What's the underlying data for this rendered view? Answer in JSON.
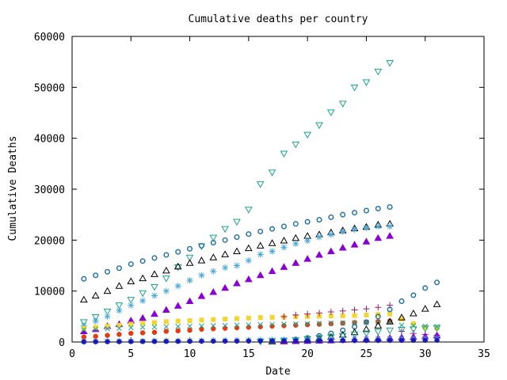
{
  "chart_data": {
    "type": "scatter",
    "title": "Cumulative deaths per country",
    "xlabel": "Date",
    "ylabel": "Cumulative Deaths",
    "xlim": [
      0,
      35
    ],
    "ylim": [
      0,
      60000
    ],
    "xticks": [
      0,
      5,
      10,
      15,
      20,
      25,
      30,
      35
    ],
    "yticks": [
      0,
      10000,
      20000,
      30000,
      40000,
      50000,
      60000
    ],
    "grid": false,
    "legend": "none",
    "series": [
      {
        "marker": "triangle-down-open",
        "color": "#1aa58a",
        "x": [
          1,
          2,
          3,
          4,
          5,
          6,
          7,
          8,
          9,
          10,
          11,
          12,
          13,
          14,
          15,
          16,
          17,
          18,
          19,
          20,
          21,
          22,
          23,
          24,
          25,
          26,
          27
        ],
        "y": [
          3900,
          4900,
          6000,
          7200,
          8300,
          9600,
          10800,
          12500,
          14700,
          16600,
          18800,
          20500,
          22200,
          23600,
          26000,
          31000,
          33300,
          37000,
          38800,
          40700,
          42600,
          45100,
          46800,
          50000,
          51000,
          53100,
          54800
        ]
      },
      {
        "marker": "circle-open",
        "color": "#1e6fa5",
        "x": [
          1,
          2,
          3,
          4,
          5,
          6,
          7,
          8,
          9,
          10,
          11,
          12,
          13,
          14,
          15,
          16,
          17,
          18,
          19,
          20,
          21,
          22,
          23,
          24,
          25,
          26,
          27
        ],
        "y": [
          12400,
          13100,
          13800,
          14500,
          15300,
          15900,
          16500,
          17100,
          17700,
          18300,
          18900,
          19500,
          20000,
          20600,
          21200,
          21700,
          22200,
          22700,
          23200,
          23600,
          24000,
          24500,
          25000,
          25400,
          25800,
          26200,
          26500
        ]
      },
      {
        "marker": "triangle-up-open",
        "color": "#000000",
        "x": [
          1,
          2,
          3,
          4,
          5,
          6,
          7,
          8,
          9,
          10,
          11,
          12,
          13,
          14,
          15,
          16,
          17,
          18,
          19,
          20,
          21,
          22,
          23,
          24,
          25,
          26,
          27
        ],
        "y": [
          8300,
          9100,
          10000,
          11000,
          11900,
          12500,
          13300,
          14000,
          14800,
          15500,
          16000,
          16600,
          17200,
          17800,
          18400,
          18900,
          19400,
          19900,
          20400,
          20800,
          21100,
          21500,
          21900,
          22300,
          22600,
          23000,
          23200
        ]
      },
      {
        "marker": "asterisk",
        "color": "#4aa8d8",
        "x": [
          1,
          2,
          3,
          4,
          5,
          6,
          7,
          8,
          9,
          10,
          11,
          12,
          13,
          14,
          15,
          16,
          17,
          18,
          19,
          20,
          21,
          22,
          23,
          24,
          25,
          26,
          27
        ],
        "y": [
          3200,
          4100,
          5000,
          6200,
          7200,
          8100,
          9100,
          10000,
          11000,
          12100,
          13100,
          13900,
          14600,
          15000,
          16000,
          17200,
          17800,
          18600,
          19300,
          19900,
          20600,
          21100,
          21700,
          22100,
          22400,
          22700,
          22700
        ]
      },
      {
        "marker": "triangle-up-filled",
        "color": "#8a00d4",
        "x": [
          1,
          2,
          3,
          4,
          5,
          6,
          7,
          8,
          9,
          10,
          11,
          12,
          13,
          14,
          15,
          16,
          17,
          18,
          19,
          20,
          21,
          22,
          23,
          24,
          25,
          26,
          27
        ],
        "y": [
          2100,
          2500,
          3100,
          3500,
          4200,
          4700,
          5500,
          6300,
          7100,
          8000,
          9000,
          9800,
          10600,
          11500,
          12300,
          13100,
          13900,
          14700,
          15500,
          16300,
          17100,
          17800,
          18500,
          19100,
          19700,
          20400,
          20800
        ]
      },
      {
        "marker": "square-filled",
        "color": "#f2d630",
        "x": [
          1,
          2,
          3,
          4,
          5,
          6,
          7,
          8,
          9,
          10,
          11,
          12,
          13,
          14,
          15,
          16,
          17,
          18,
          19,
          20,
          21,
          22,
          23,
          24,
          25,
          26,
          27,
          28,
          29,
          30,
          31
        ],
        "y": [
          2700,
          2900,
          3100,
          3300,
          3500,
          3700,
          3800,
          4000,
          4100,
          4200,
          4300,
          4400,
          4500,
          4600,
          4700,
          4800,
          4850,
          4900,
          4950,
          5000,
          5050,
          5100,
          5150,
          5200,
          5300,
          5400,
          5500,
          4500,
          3600,
          2900,
          2700
        ]
      },
      {
        "marker": "circle-filled",
        "color": "#e83a10",
        "x": [
          1,
          2,
          3,
          4,
          5,
          6,
          7,
          8,
          9,
          10,
          11,
          12,
          13,
          14,
          15,
          16,
          17,
          18,
          19,
          20,
          21,
          22,
          23,
          24,
          25,
          26,
          27
        ],
        "y": [
          1000,
          1100,
          1300,
          1500,
          1700,
          1800,
          1900,
          2100,
          2200,
          2300,
          2500,
          2600,
          2700,
          2800,
          2900,
          3000,
          3100,
          3200,
          3300,
          3400,
          3500,
          3600,
          3700,
          3800,
          3900,
          4000,
          4100
        ]
      },
      {
        "marker": "x",
        "color": "#1aa58a",
        "x": [
          1,
          2,
          3,
          4,
          5,
          6,
          7,
          8,
          9,
          10,
          11,
          12,
          13,
          14,
          15,
          16,
          17,
          18,
          19,
          20,
          21,
          22,
          23,
          24,
          25,
          26,
          27,
          28,
          29,
          30,
          31
        ],
        "y": [
          2400,
          2500,
          2600,
          2700,
          2800,
          2900,
          2950,
          3000,
          3050,
          3100,
          3150,
          3200,
          3250,
          3300,
          3350,
          3400,
          3450,
          3500,
          3550,
          3600,
          3650,
          3700,
          3750,
          3800,
          3850,
          3900,
          3950,
          3300,
          3200,
          3100,
          3000
        ]
      },
      {
        "marker": "plus",
        "color": "#9a1a6e",
        "x": [
          18,
          19,
          20,
          21,
          22,
          23,
          24,
          25,
          26,
          27,
          28,
          29,
          30,
          31
        ],
        "y": [
          5000,
          5300,
          5500,
          5700,
          5900,
          6100,
          6300,
          6500,
          6800,
          7200,
          2100,
          1700,
          1500,
          1300
        ]
      },
      {
        "marker": "circle-open",
        "color": "#1e6fa5",
        "x": [
          17,
          18,
          19,
          20,
          21,
          22,
          23,
          24,
          25,
          26,
          27,
          28,
          29,
          30,
          31
        ],
        "y": [
          200,
          300,
          500,
          800,
          1200,
          1700,
          2300,
          3000,
          3900,
          5000,
          6400,
          8000,
          9200,
          10600,
          11700
        ]
      },
      {
        "marker": "triangle-up-open",
        "color": "#000000",
        "x": [
          17,
          18,
          19,
          20,
          21,
          22,
          23,
          24,
          25,
          26,
          27,
          28,
          29,
          30,
          31
        ],
        "y": [
          100,
          200,
          300,
          500,
          700,
          1000,
          1400,
          1900,
          2500,
          3200,
          4000,
          4800,
          5600,
          6500,
          7400
        ]
      },
      {
        "marker": "triangle-down-open",
        "color": "#1aa58a",
        "x": [
          16,
          17,
          18,
          19,
          20,
          21,
          22,
          23,
          24,
          25,
          26,
          27,
          28,
          29,
          30,
          31
        ],
        "y": [
          100,
          200,
          300,
          400,
          600,
          800,
          1000,
          1200,
          1500,
          1700,
          2000,
          2300,
          2400,
          2500,
          2700,
          2800
        ]
      },
      {
        "marker": "triangle-up-filled",
        "color": "#8a00d4",
        "x": [
          18,
          19,
          20,
          21,
          22,
          23,
          24,
          25,
          26,
          27,
          28,
          29,
          30,
          31
        ],
        "y": [
          100,
          150,
          200,
          250,
          300,
          400,
          500,
          600,
          700,
          800,
          900,
          1000,
          1100,
          1300
        ]
      },
      {
        "marker": "asterisk",
        "color": "#4aa8d8",
        "x": [
          1,
          2,
          3,
          4,
          5,
          6,
          7,
          8,
          9,
          10,
          11,
          12,
          13,
          14,
          15,
          16,
          17,
          18,
          19,
          20,
          21,
          22,
          23,
          24,
          25,
          26,
          27,
          28,
          29,
          30,
          31
        ],
        "y": [
          100,
          120,
          140,
          160,
          180,
          200,
          220,
          240,
          260,
          280,
          300,
          320,
          340,
          360,
          380,
          400,
          420,
          440,
          460,
          480,
          500,
          520,
          540,
          560,
          580,
          600,
          620,
          640,
          660,
          680,
          700
        ]
      },
      {
        "marker": "circle-filled",
        "color": "#1a1ab8",
        "x": [
          1,
          2,
          3,
          4,
          5,
          6,
          7,
          8,
          9,
          10,
          11,
          12,
          13,
          14,
          15,
          16,
          17,
          18,
          19,
          20,
          21,
          22,
          23,
          24,
          25,
          26,
          27,
          28,
          29,
          30,
          31
        ],
        "y": [
          50,
          60,
          70,
          80,
          90,
          100,
          110,
          120,
          130,
          140,
          150,
          160,
          170,
          180,
          190,
          200,
          210,
          220,
          230,
          240,
          250,
          260,
          270,
          280,
          290,
          300,
          310,
          320,
          330,
          340,
          350
        ]
      }
    ]
  }
}
